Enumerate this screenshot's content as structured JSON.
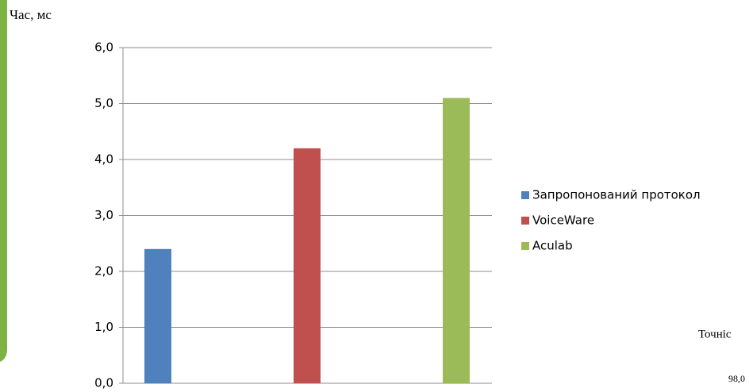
{
  "chart_data": {
    "type": "bar",
    "y_label": "Час, мс",
    "categories": [
      null
    ],
    "series": [
      {
        "name": "Запропонований протокол",
        "color": "#4f81bd",
        "values": [
          2.4
        ]
      },
      {
        "name": "VoiceWare",
        "color": "#c0504d",
        "values": [
          4.2
        ]
      },
      {
        "name": "Aculab",
        "color": "#9bbb59",
        "values": [
          5.1
        ]
      }
    ],
    "ylim": [
      0,
      6
    ],
    "yticks": [
      {
        "value": 0,
        "label": "0,0"
      },
      {
        "value": 1,
        "label": "1,0"
      },
      {
        "value": 2,
        "label": "2,0"
      },
      {
        "value": 3,
        "label": "3,0"
      },
      {
        "value": 4,
        "label": "4,0"
      },
      {
        "value": 5,
        "label": "5,0"
      },
      {
        "value": 6,
        "label": "6,0"
      }
    ],
    "grid": true,
    "legend": "right",
    "annotations": [
      "Точніс",
      "98,0"
    ]
  }
}
